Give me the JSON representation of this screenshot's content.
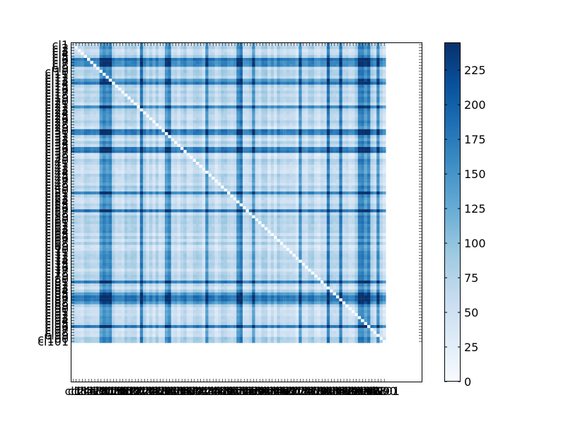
{
  "chart_data": {
    "type": "heatmap",
    "title": "",
    "xlabel": "",
    "ylabel": "",
    "row_count": 101,
    "column_count": 101,
    "x_tick_labels_visible": [
      "cl",
      "cl0",
      "cl1"
    ],
    "y_tick_labels_visible": [
      "cl1",
      "cl10",
      "cl101"
    ],
    "label_prefix": "cl",
    "value_range": [
      0,
      245
    ],
    "diagonal_value": 0,
    "colormap": "Blues",
    "colormap_stops": [
      "#f7fbff",
      "#deebf7",
      "#c6dbef",
      "#9ecae1",
      "#6baed6",
      "#4292c6",
      "#2171b5",
      "#08519c",
      "#08306b"
    ],
    "colorbar": {
      "ticks": [
        0,
        25,
        50,
        75,
        100,
        125,
        150,
        175,
        200,
        225
      ],
      "tick_labels": [
        "0",
        "25",
        "50",
        "75",
        "100",
        "125",
        "150",
        "175",
        "200",
        "225"
      ],
      "vmin": 0,
      "vmax": 245
    },
    "dark_columns": [
      9,
      10,
      11,
      12,
      22,
      30,
      31,
      43,
      53,
      54,
      58,
      73,
      82,
      86,
      92,
      93,
      94,
      95,
      98
    ],
    "dark_rows": [
      5,
      6,
      7,
      12,
      13,
      21,
      29,
      30,
      35,
      36,
      50,
      56,
      80,
      84,
      85,
      86,
      87,
      95
    ],
    "background_level": 45
  }
}
